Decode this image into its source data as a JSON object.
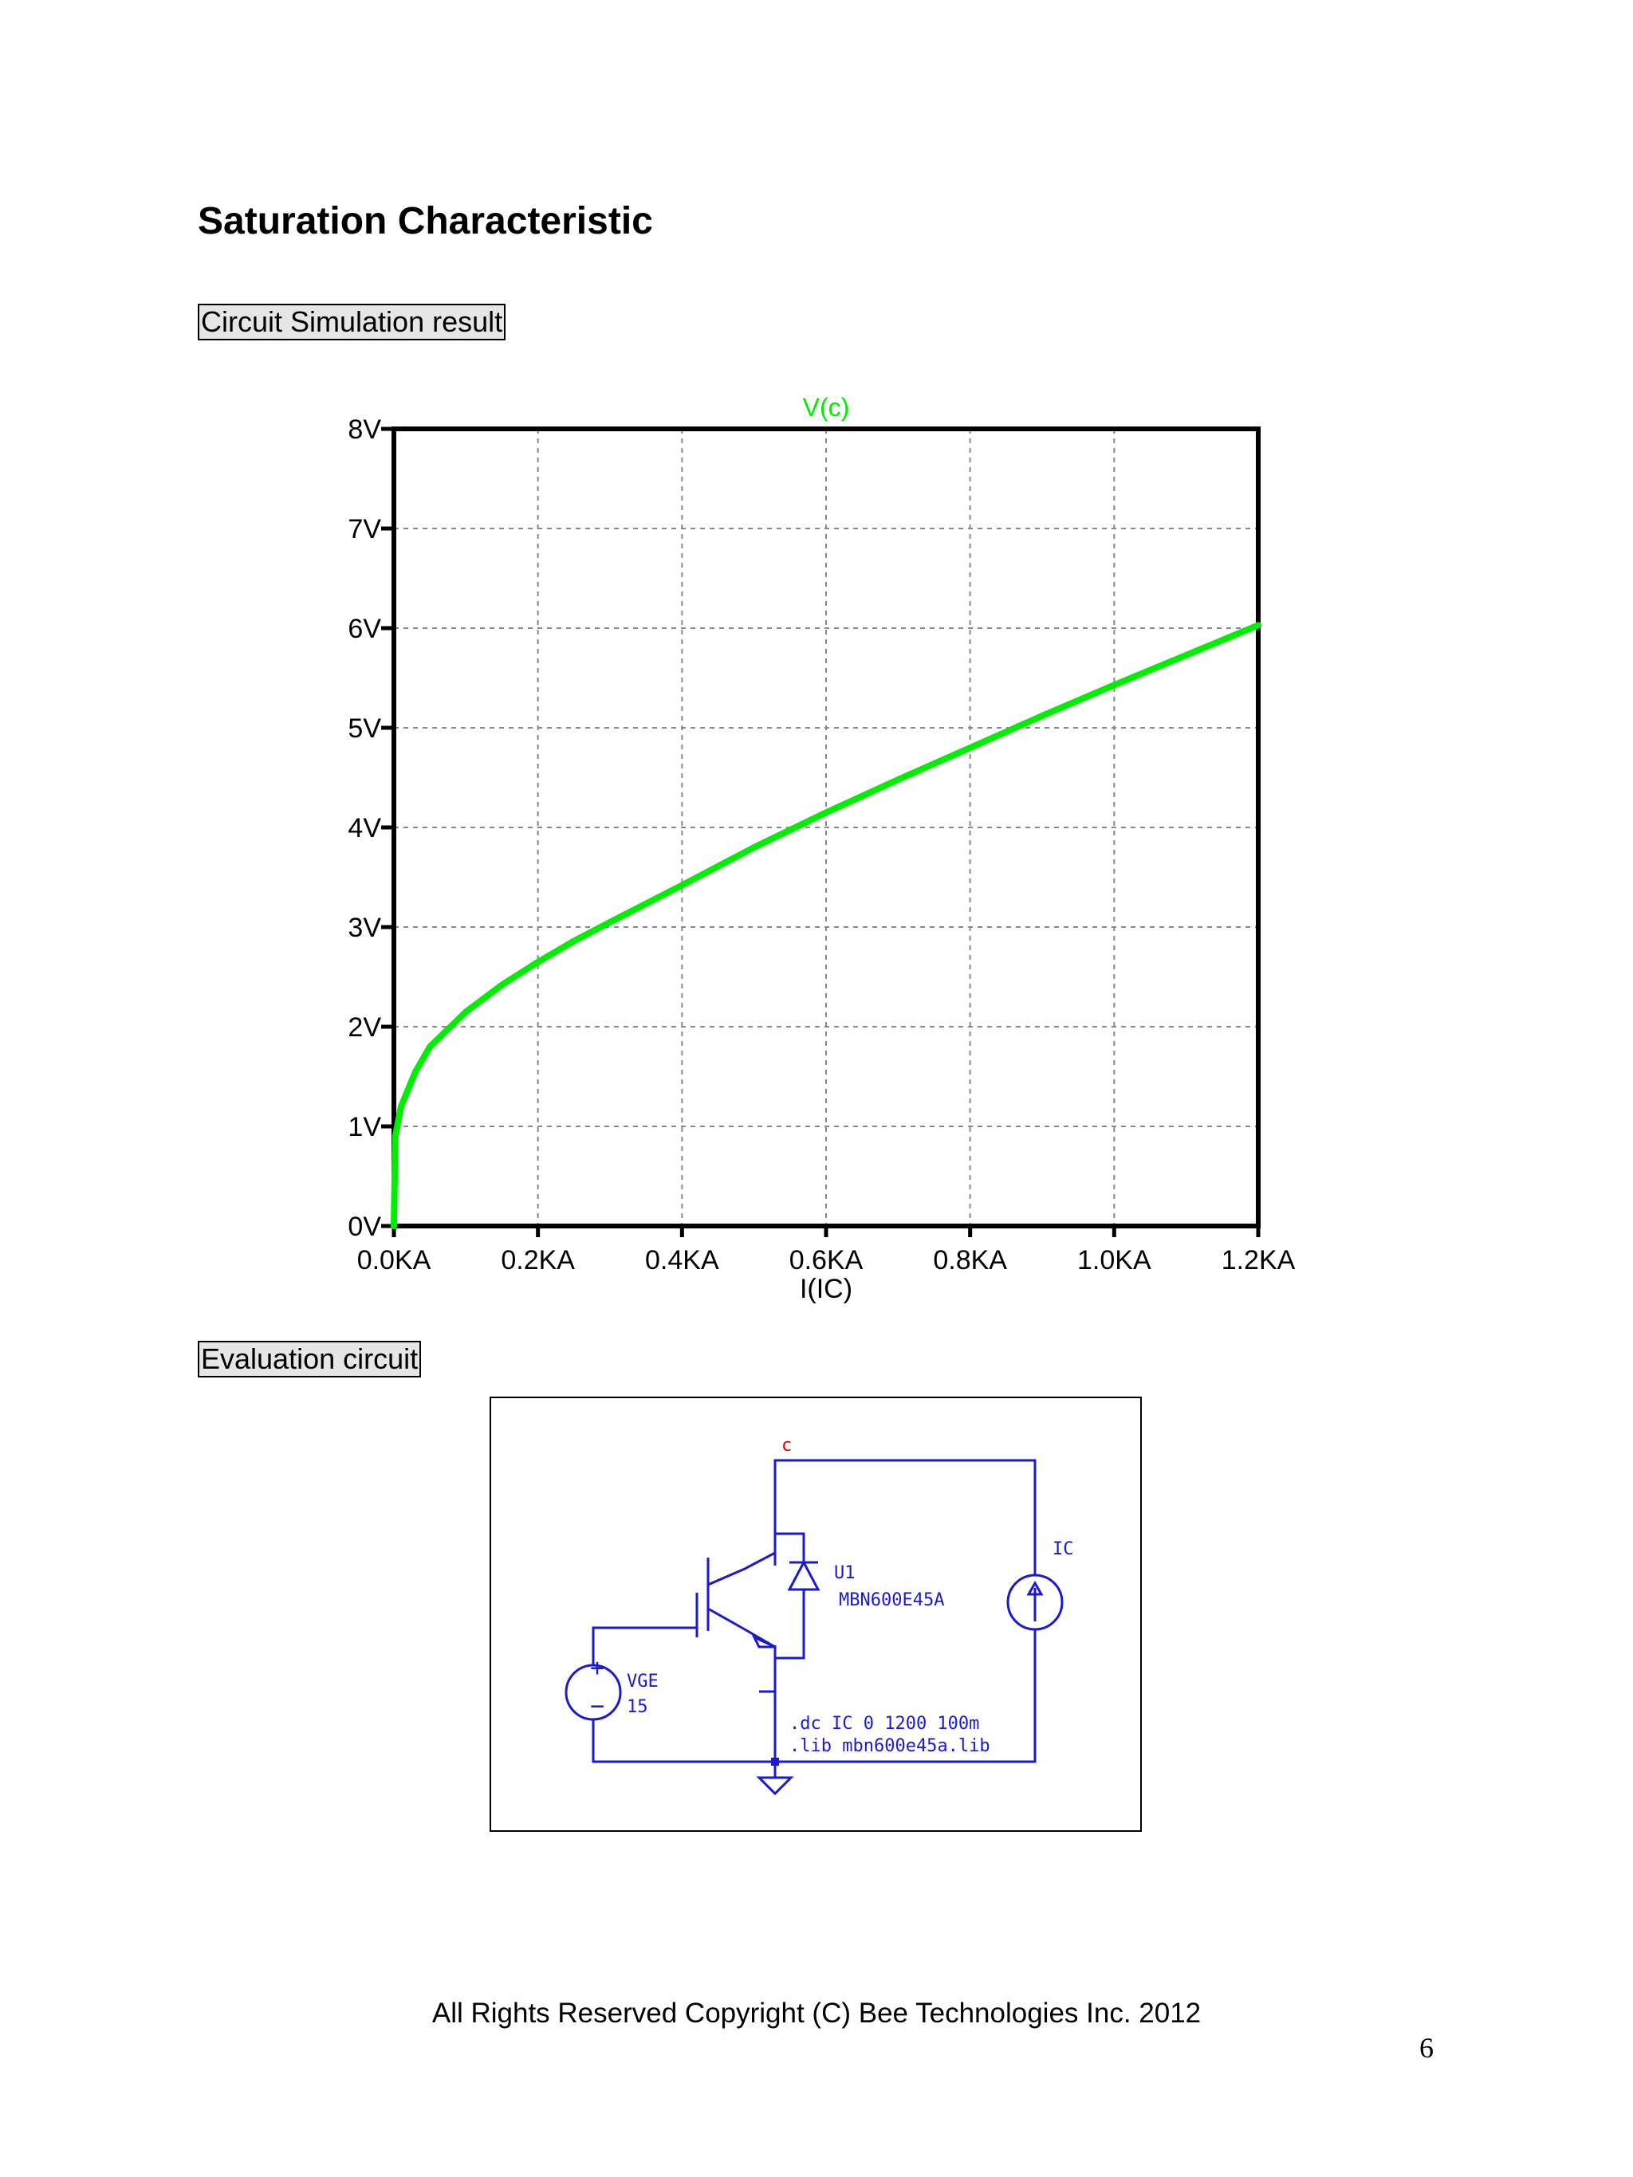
{
  "page": {
    "title": "Saturation Characteristic",
    "section_simulation": "Circuit Simulation result",
    "section_evaluation": "Evaluation circuit",
    "copyright": "All Rights Reserved Copyright (C) Bee Technologies Inc. 2012",
    "page_number": "6"
  },
  "chart_data": {
    "type": "line",
    "title": "V(c)",
    "xlabel": "I(IC)",
    "ylabel": "",
    "xlim": [
      0,
      1.2
    ],
    "ylim": [
      0,
      8
    ],
    "x_tick_labels": [
      "0.0KA",
      "0.2KA",
      "0.4KA",
      "0.6KA",
      "0.8KA",
      "1.0KA",
      "1.2KA"
    ],
    "y_tick_labels": [
      "0V",
      "1V",
      "2V",
      "3V",
      "4V",
      "5V",
      "6V",
      "7V",
      "8V"
    ],
    "grid": true,
    "series": [
      {
        "name": "V(c)",
        "color": "#00ee00",
        "x": [
          0,
          0.002,
          0.01,
          0.03,
          0.05,
          0.1,
          0.15,
          0.2,
          0.25,
          0.3,
          0.4,
          0.5,
          0.6,
          0.7,
          0.8,
          0.9,
          1.0,
          1.1,
          1.2
        ],
        "y": [
          0,
          0.9,
          1.2,
          1.55,
          1.8,
          2.15,
          2.42,
          2.65,
          2.86,
          3.05,
          3.42,
          3.8,
          4.15,
          4.48,
          4.8,
          5.12,
          5.43,
          5.73,
          6.03
        ]
      }
    ]
  },
  "circuit": {
    "node_c": "c",
    "source_ic": "IC",
    "device_ref": "U1",
    "device_model": "MBN600E45A",
    "source_vge": "VGE",
    "vge_value": "15",
    "plus_sign": "+",
    "minus_sign": "−",
    "directive_dc": ".dc IC 0 1200 100m",
    "directive_lib": ".lib mbn600e45a.lib",
    "wire_color": "#1a1ad0",
    "label_color": "#1a1ad0",
    "node_color": "#e00000"
  }
}
